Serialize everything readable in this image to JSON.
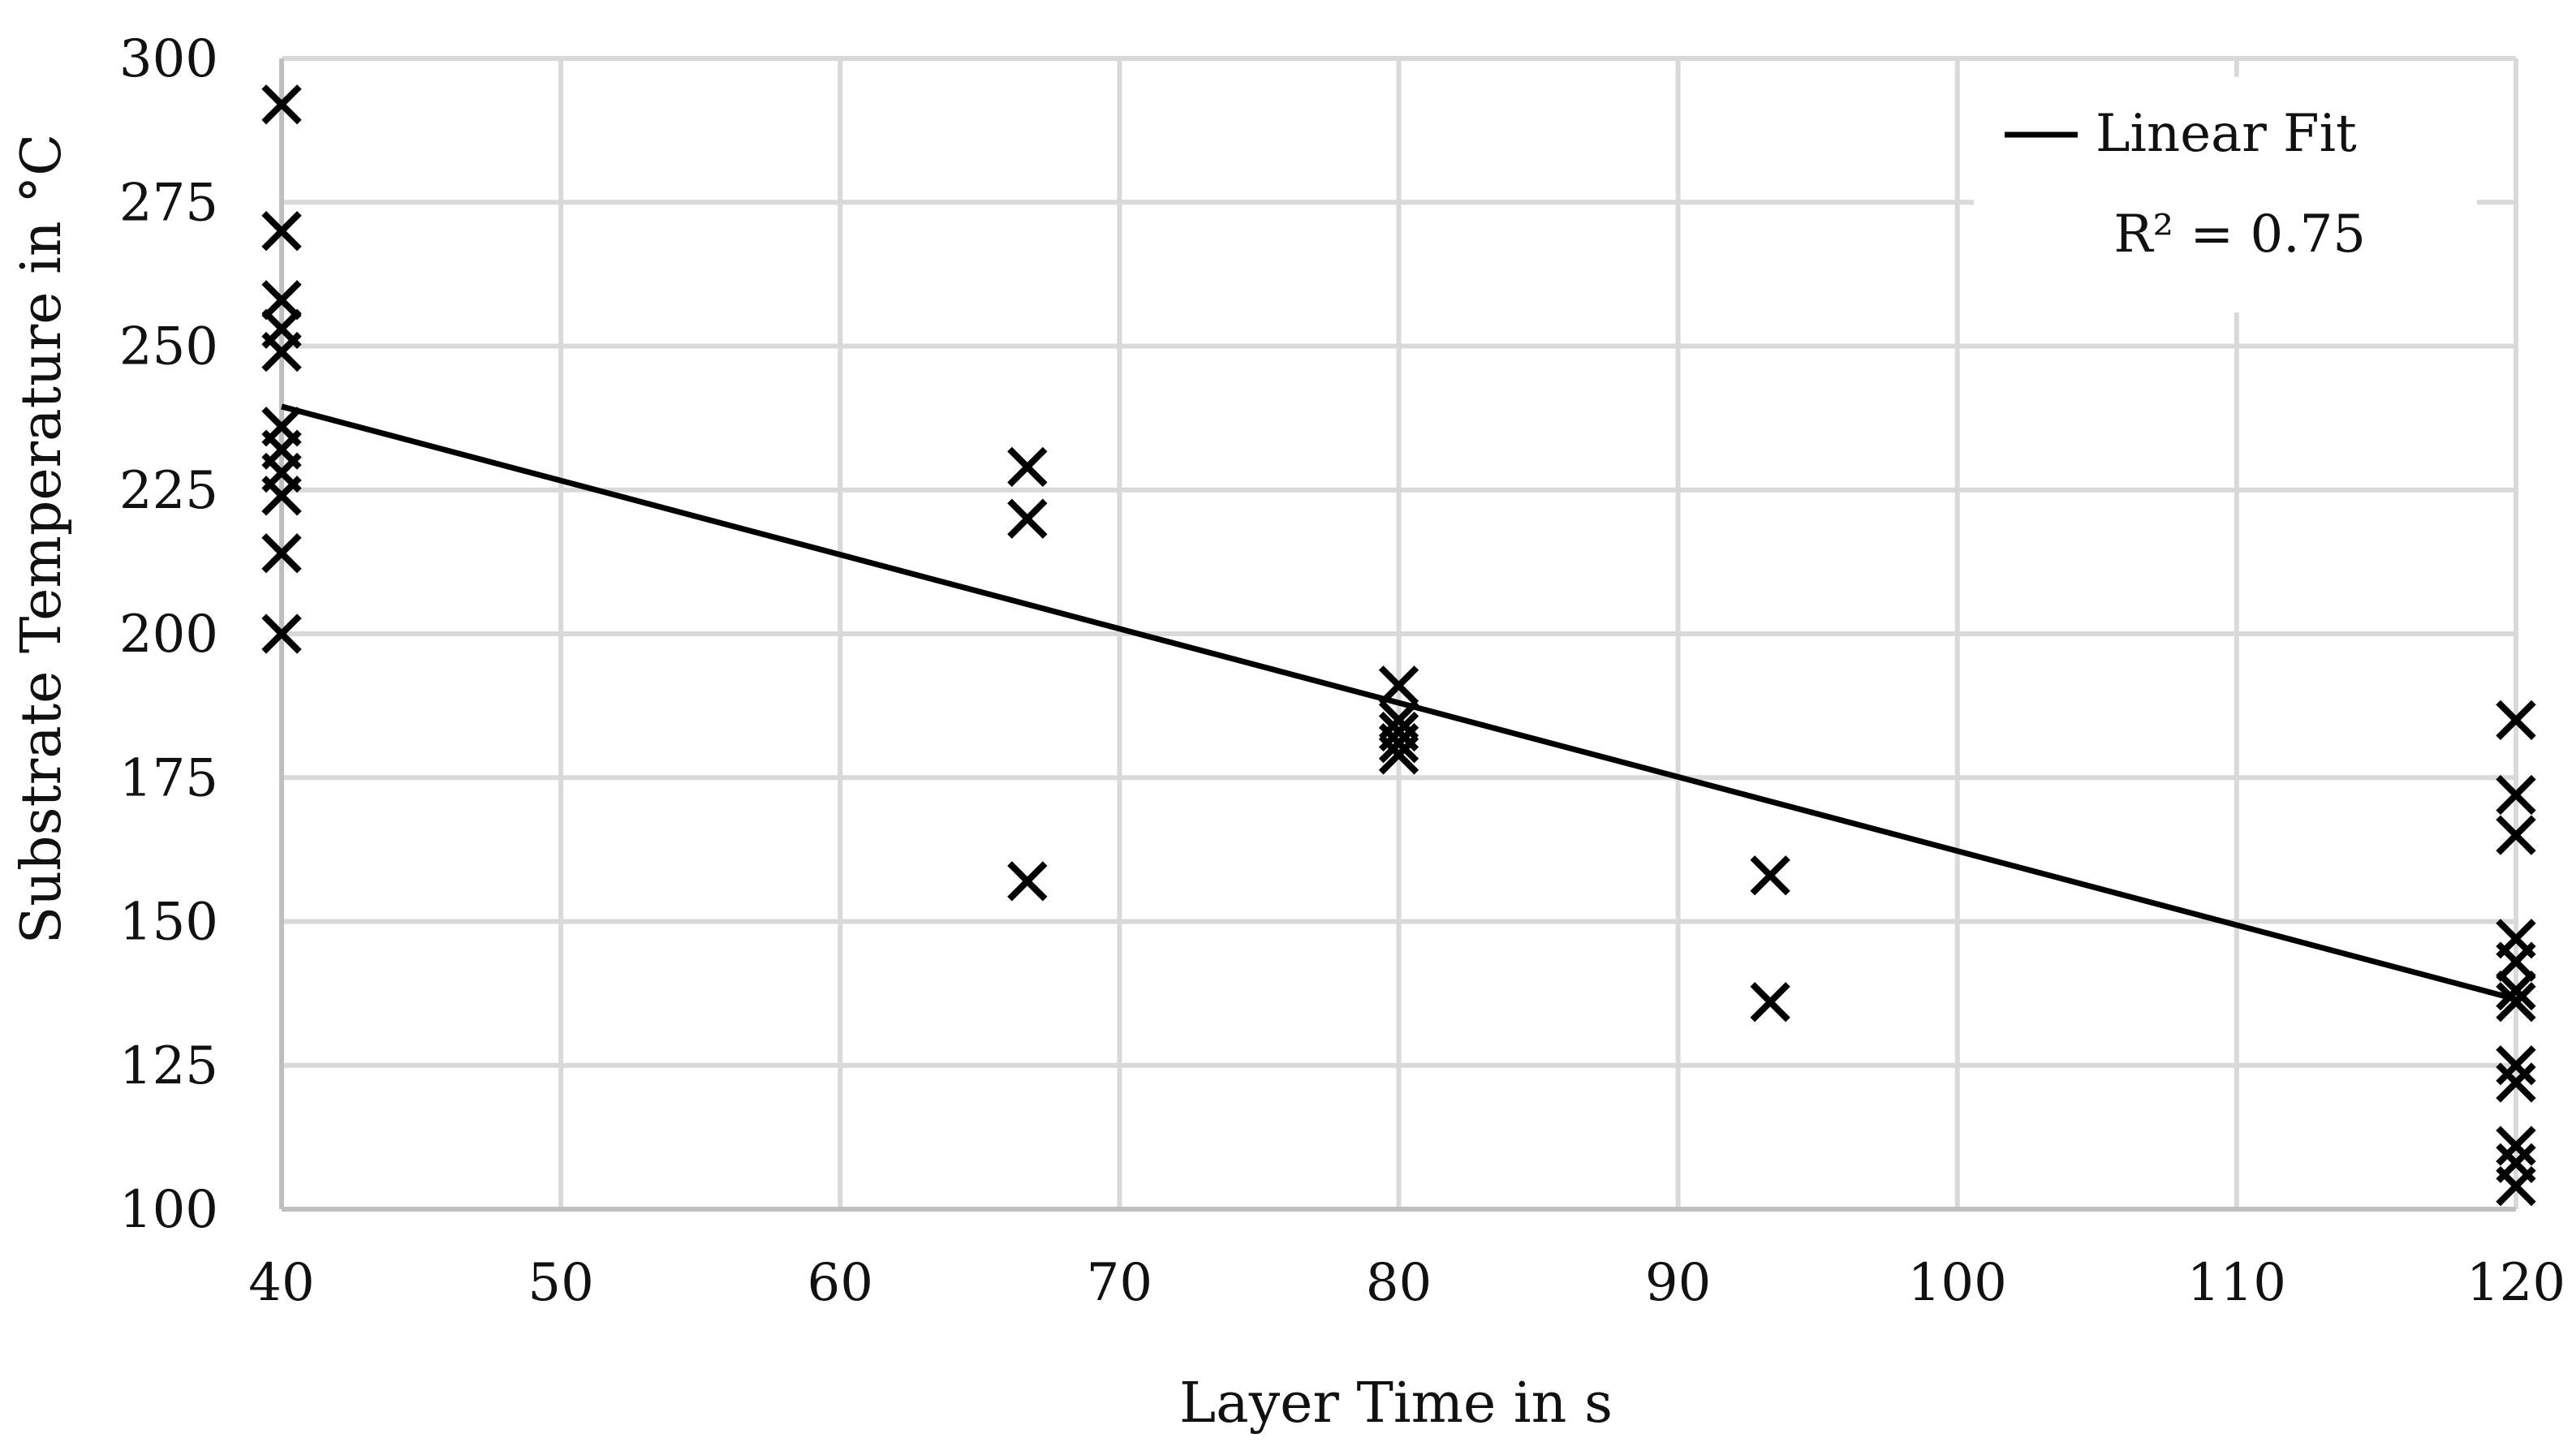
{
  "chart_data": {
    "type": "scatter",
    "title": "",
    "xlabel": "Layer Time in s",
    "ylabel": "Substrate Temperature in °C",
    "xlim": [
      40,
      120
    ],
    "ylim": [
      100,
      300
    ],
    "x_ticks": [
      40,
      50,
      60,
      70,
      80,
      90,
      100,
      110,
      120
    ],
    "y_ticks": [
      100,
      125,
      150,
      175,
      200,
      225,
      250,
      275,
      300
    ],
    "grid": true,
    "legend": {
      "position": "top-right",
      "entries": [
        {
          "label": "Linear Fit",
          "style": "line"
        }
      ],
      "annotation": "R² = 0.75"
    },
    "series": [
      {
        "marker": "x",
        "color": "#000000",
        "points": [
          {
            "x": 40,
            "y": 292
          },
          {
            "x": 40,
            "y": 270
          },
          {
            "x": 40,
            "y": 258
          },
          {
            "x": 40,
            "y": 253
          },
          {
            "x": 40,
            "y": 249
          },
          {
            "x": 40,
            "y": 236
          },
          {
            "x": 40,
            "y": 232
          },
          {
            "x": 40,
            "y": 228
          },
          {
            "x": 40,
            "y": 224
          },
          {
            "x": 40,
            "y": 214
          },
          {
            "x": 40,
            "y": 200
          },
          {
            "x": 66.7,
            "y": 229
          },
          {
            "x": 66.7,
            "y": 220
          },
          {
            "x": 66.7,
            "y": 157
          },
          {
            "x": 80,
            "y": 191
          },
          {
            "x": 80,
            "y": 185
          },
          {
            "x": 80,
            "y": 183
          },
          {
            "x": 80,
            "y": 181
          },
          {
            "x": 80,
            "y": 179
          },
          {
            "x": 93.3,
            "y": 158
          },
          {
            "x": 93.3,
            "y": 136
          },
          {
            "x": 120,
            "y": 185
          },
          {
            "x": 120,
            "y": 172
          },
          {
            "x": 120,
            "y": 165
          },
          {
            "x": 120,
            "y": 147
          },
          {
            "x": 120,
            "y": 143
          },
          {
            "x": 120,
            "y": 138
          },
          {
            "x": 120,
            "y": 136
          },
          {
            "x": 120,
            "y": 125
          },
          {
            "x": 120,
            "y": 122
          },
          {
            "x": 120,
            "y": 111
          },
          {
            "x": 120,
            "y": 108
          },
          {
            "x": 120,
            "y": 104
          }
        ]
      }
    ],
    "fit": {
      "name": "Linear Fit",
      "x": [
        40,
        120
      ],
      "y": [
        239.5,
        136.5
      ]
    }
  }
}
